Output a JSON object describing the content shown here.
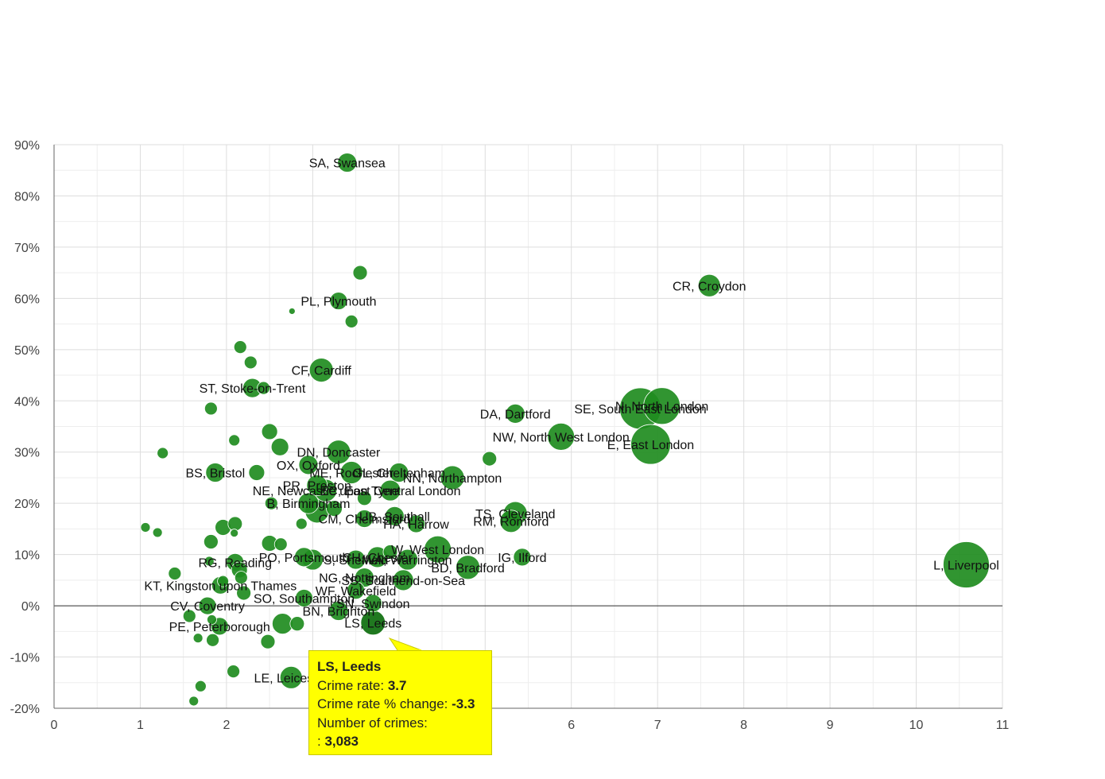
{
  "chart_data": {
    "type": "scatter",
    "title": "",
    "xlabel": "",
    "ylabel": "",
    "xlim": [
      0,
      11
    ],
    "ylim": [
      -20,
      90
    ],
    "x_ticks": [
      0,
      1,
      2,
      3,
      4,
      5,
      6,
      7,
      8,
      9,
      10,
      11
    ],
    "x_tick_labels": [
      "0",
      "1",
      "2",
      "",
      "",
      "",
      "6",
      "7",
      "8",
      "9",
      "10",
      "11"
    ],
    "y_ticks": [
      -20,
      -10,
      0,
      10,
      20,
      30,
      40,
      50,
      60,
      70,
      80,
      90
    ],
    "y_tick_labels": [
      "-20%",
      "-10%",
      "0%",
      "10%",
      "20%",
      "30%",
      "40%",
      "50%",
      "60%",
      "70%",
      "80%",
      "90%"
    ],
    "x_meaning": "Crime rate",
    "y_meaning": "Crime rate % change",
    "size_meaning": "Number of crimes",
    "points": [
      {
        "x": 3.4,
        "y": 86.5,
        "s": 12,
        "label": "SA, Swansea"
      },
      {
        "x": 7.6,
        "y": 62.5,
        "s": 14,
        "label": "CR, Croydon"
      },
      {
        "x": 3.3,
        "y": 59.5,
        "s": 11,
        "label": "PL, Plymouth"
      },
      {
        "x": 3.1,
        "y": 46.0,
        "s": 15,
        "label": "CF, Cardiff"
      },
      {
        "x": 2.3,
        "y": 42.5,
        "s": 12,
        "label": "ST, Stoke-on-Trent"
      },
      {
        "x": 7.05,
        "y": 39.0,
        "s": 23,
        "label": "N, North London"
      },
      {
        "x": 6.8,
        "y": 38.5,
        "s": 26,
        "label": "SE, South East London"
      },
      {
        "x": 5.35,
        "y": 37.5,
        "s": 12,
        "label": "DA, Dartford"
      },
      {
        "x": 6.92,
        "y": 31.5,
        "s": 25,
        "label": "E, East London"
      },
      {
        "x": 5.88,
        "y": 33.0,
        "s": 17,
        "label": "NW, North West London"
      },
      {
        "x": 3.3,
        "y": 30.0,
        "s": 15,
        "label": "DN, Doncaster"
      },
      {
        "x": 2.95,
        "y": 27.5,
        "s": 12,
        "label": "OX, Oxford"
      },
      {
        "x": 1.87,
        "y": 26.0,
        "s": 12,
        "label": "BS, Bristol"
      },
      {
        "x": 3.45,
        "y": 26.0,
        "s": 14,
        "label": "ME, Rochester"
      },
      {
        "x": 4.0,
        "y": 26.0,
        "s": 12,
        "label": "GL, Cheltenham"
      },
      {
        "x": 4.62,
        "y": 25.0,
        "s": 15,
        "label": "NN, Northampton"
      },
      {
        "x": 3.05,
        "y": 23.5,
        "s": 13,
        "label": "PR, Preston"
      },
      {
        "x": 3.15,
        "y": 22.5,
        "s": 14,
        "label": "NE, Newcastle upon Tyne"
      },
      {
        "x": 3.9,
        "y": 22.5,
        "s": 13,
        "label": "EC, East Central London"
      },
      {
        "x": 2.95,
        "y": 20.0,
        "s": 13,
        "label": "B, Birmingham"
      },
      {
        "x": 3.05,
        "y": 18.5,
        "s": 15,
        "label": ""
      },
      {
        "x": 3.6,
        "y": 17.0,
        "s": 11,
        "label": "CM, Chelmsford"
      },
      {
        "x": 3.95,
        "y": 17.5,
        "s": 12,
        "label": "UB, Southall"
      },
      {
        "x": 5.35,
        "y": 18.0,
        "s": 15,
        "label": "TS, Cleveland"
      },
      {
        "x": 4.2,
        "y": 16.0,
        "s": 11,
        "label": "HA, Harrow"
      },
      {
        "x": 5.3,
        "y": 16.5,
        "s": 14,
        "label": "RM, Romford"
      },
      {
        "x": 4.45,
        "y": 11.0,
        "s": 17,
        "label": "W, West London"
      },
      {
        "x": 5.43,
        "y": 9.5,
        "s": 11,
        "label": "IG, Ilford"
      },
      {
        "x": 10.58,
        "y": 8.0,
        "s": 29,
        "label": "L, Liverpool"
      },
      {
        "x": 4.1,
        "y": 9.0,
        "s": 13,
        "label": "WA, Warrington"
      },
      {
        "x": 3.5,
        "y": 9.0,
        "s": 12,
        "label": "S, Sheffield"
      },
      {
        "x": 3.75,
        "y": 9.5,
        "s": 13,
        "label": "CH, Chester"
      },
      {
        "x": 2.9,
        "y": 9.5,
        "s": 12,
        "label": "PO, Portsmouth"
      },
      {
        "x": 2.1,
        "y": 8.5,
        "s": 11,
        "label": "RG, Reading"
      },
      {
        "x": 4.8,
        "y": 7.5,
        "s": 15,
        "label": "BD, Bradford"
      },
      {
        "x": 4.05,
        "y": 5.0,
        "s": 13,
        "label": "SS, Southend-on-Sea"
      },
      {
        "x": 3.6,
        "y": 5.5,
        "s": 12,
        "label": "NG, Nottingham"
      },
      {
        "x": 1.93,
        "y": 4.0,
        "s": 11,
        "label": "KT, Kingston upon Thames"
      },
      {
        "x": 3.5,
        "y": 3.0,
        "s": 11,
        "label": "WF, Wakefield"
      },
      {
        "x": 2.9,
        "y": 1.5,
        "s": 11,
        "label": "SO, Southampton"
      },
      {
        "x": 1.78,
        "y": 0.0,
        "s": 11,
        "label": "CV, Coventry"
      },
      {
        "x": 3.3,
        "y": -1.0,
        "s": 12,
        "label": "BN, Brighton"
      },
      {
        "x": 3.7,
        "y": 0.5,
        "s": 11,
        "label": "SN, Swindon"
      },
      {
        "x": 1.92,
        "y": -4.0,
        "s": 11,
        "label": "PE, Peterborough"
      },
      {
        "x": 3.7,
        "y": -3.3,
        "s": 16,
        "label": "LS, Leeds",
        "crime_rate": "3.7",
        "change": "-3.3",
        "crimes": "3,083"
      },
      {
        "x": 2.75,
        "y": -14.0,
        "s": 14,
        "label": "LE, Leicester"
      },
      {
        "x": 3.55,
        "y": 65.0,
        "s": 9,
        "s_": 0
      },
      {
        "x": 3.45,
        "y": 55.5,
        "s": 8
      },
      {
        "x": 2.76,
        "y": 57.5,
        "s": 4
      },
      {
        "x": 2.16,
        "y": 50.5,
        "s": 8
      },
      {
        "x": 2.28,
        "y": 47.5,
        "s": 8
      },
      {
        "x": 2.43,
        "y": 42.5,
        "s": 8
      },
      {
        "x": 1.82,
        "y": 38.5,
        "s": 8
      },
      {
        "x": 2.5,
        "y": 34.0,
        "s": 10
      },
      {
        "x": 2.09,
        "y": 32.3,
        "s": 7
      },
      {
        "x": 2.62,
        "y": 31.0,
        "s": 11
      },
      {
        "x": 1.26,
        "y": 29.8,
        "s": 7
      },
      {
        "x": 5.05,
        "y": 28.7,
        "s": 9
      },
      {
        "x": 2.35,
        "y": 26.0,
        "s": 10
      },
      {
        "x": 3.6,
        "y": 21.0,
        "s": 9
      },
      {
        "x": 2.52,
        "y": 20.0,
        "s": 8
      },
      {
        "x": 3.25,
        "y": 19.0,
        "s": 10
      },
      {
        "x": 2.87,
        "y": 16.0,
        "s": 7
      },
      {
        "x": 2.1,
        "y": 16.0,
        "s": 9
      },
      {
        "x": 1.96,
        "y": 15.3,
        "s": 10
      },
      {
        "x": 1.06,
        "y": 15.3,
        "s": 6
      },
      {
        "x": 1.2,
        "y": 14.3,
        "s": 6
      },
      {
        "x": 2.09,
        "y": 14.2,
        "s": 5
      },
      {
        "x": 1.82,
        "y": 12.5,
        "s": 9
      },
      {
        "x": 2.5,
        "y": 12.2,
        "s": 10
      },
      {
        "x": 2.63,
        "y": 12.0,
        "s": 8
      },
      {
        "x": 3.9,
        "y": 10.5,
        "s": 9
      },
      {
        "x": 3.0,
        "y": 9.0,
        "s": 13
      },
      {
        "x": 1.8,
        "y": 8.7,
        "s": 6
      },
      {
        "x": 2.15,
        "y": 7.0,
        "s": 10
      },
      {
        "x": 1.4,
        "y": 6.3,
        "s": 8
      },
      {
        "x": 2.17,
        "y": 5.5,
        "s": 8
      },
      {
        "x": 1.96,
        "y": 4.8,
        "s": 7
      },
      {
        "x": 2.2,
        "y": 2.5,
        "s": 9
      },
      {
        "x": 1.57,
        "y": -2.0,
        "s": 8
      },
      {
        "x": 1.83,
        "y": -2.7,
        "s": 6
      },
      {
        "x": 2.65,
        "y": -3.5,
        "s": 13
      },
      {
        "x": 2.82,
        "y": -3.5,
        "s": 9
      },
      {
        "x": 1.67,
        "y": -6.3,
        "s": 6
      },
      {
        "x": 1.84,
        "y": -6.7,
        "s": 8
      },
      {
        "x": 2.48,
        "y": -7.0,
        "s": 9
      },
      {
        "x": 2.08,
        "y": -12.8,
        "s": 8
      },
      {
        "x": 1.7,
        "y": -15.7,
        "s": 7
      },
      {
        "x": 1.62,
        "y": -18.6,
        "s": 6
      }
    ],
    "tooltip": {
      "title": "LS, Leeds",
      "rate_label": "Crime rate:",
      "rate_value": "3.7",
      "change_label": "Crime rate % change:",
      "change_value": "-3.3",
      "crimes_label": "Number of crimes:",
      "crimes_prefix": ":",
      "crimes_value": "3,083"
    },
    "colors": {
      "bubble": "#1f8c1f",
      "highlight": "#0d6e0d",
      "grid": "#dddddd",
      "minor_grid": "#eeeeee",
      "zero_line": "#333333",
      "tooltip_bg": "#ffff00"
    }
  }
}
